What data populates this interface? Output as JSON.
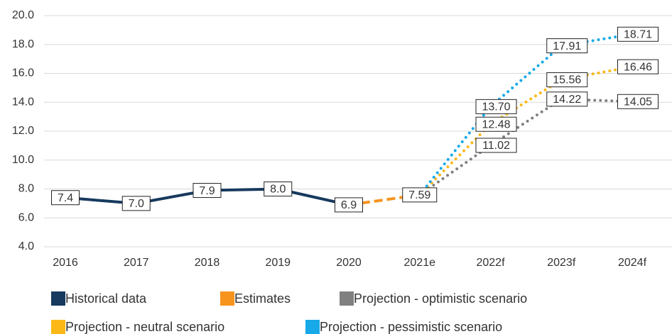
{
  "chart_data": {
    "type": "line",
    "categories": [
      "2016",
      "2017",
      "2018",
      "2019",
      "2020",
      "2021e",
      "2022f",
      "2023f",
      "2024f"
    ],
    "series": [
      {
        "name": "Historical data",
        "color": "#173a5e",
        "dash": "solid",
        "values": [
          7.4,
          7.0,
          7.9,
          8.0,
          6.9,
          null,
          null,
          null,
          null
        ],
        "value_labels": [
          "7.4",
          "7.0",
          "7.9",
          "8.0",
          "6.9",
          null,
          null,
          null,
          null
        ]
      },
      {
        "name": "Estimates",
        "color": "#f7941d",
        "dash": "dashed",
        "values": [
          null,
          null,
          null,
          null,
          6.9,
          7.59,
          null,
          null,
          null
        ],
        "value_labels": [
          null,
          null,
          null,
          null,
          null,
          "7.59",
          null,
          null,
          null
        ]
      },
      {
        "name": "Projection - optimistic scenario",
        "color": "#808080",
        "dash": "dotted",
        "values": [
          null,
          null,
          null,
          null,
          null,
          7.59,
          11.02,
          14.22,
          14.05
        ],
        "value_labels": [
          null,
          null,
          null,
          null,
          null,
          null,
          "11.02",
          "14.22",
          "14.05"
        ]
      },
      {
        "name": "Projection - neutral scenario",
        "color": "#fbb817",
        "dash": "dotted",
        "values": [
          null,
          null,
          null,
          null,
          null,
          7.59,
          12.48,
          15.56,
          16.46
        ],
        "value_labels": [
          null,
          null,
          null,
          null,
          null,
          null,
          "12.48",
          "15.56",
          "16.46"
        ]
      },
      {
        "name": "Projection - pessimistic scenario",
        "color": "#17a9e8",
        "dash": "dotted",
        "values": [
          null,
          null,
          null,
          null,
          null,
          7.59,
          13.7,
          17.91,
          18.71
        ],
        "value_labels": [
          null,
          null,
          null,
          null,
          null,
          null,
          "13.70",
          "17.91",
          "18.71"
        ]
      }
    ],
    "ylim": [
      4.0,
      20.0
    ],
    "yticks": [
      {
        "value": 4,
        "label": "4.0"
      },
      {
        "value": 6,
        "label": "6.0"
      },
      {
        "value": 8,
        "label": "8.0"
      },
      {
        "value": 10,
        "label": "10.0"
      },
      {
        "value": 12,
        "label": "12.0"
      },
      {
        "value": 14,
        "label": "14.0"
      },
      {
        "value": 16,
        "label": "16.0"
      },
      {
        "value": 18,
        "label": "18.0"
      },
      {
        "value": 20,
        "label": "20.0"
      }
    ],
    "grid": true,
    "legend": "bottom"
  }
}
